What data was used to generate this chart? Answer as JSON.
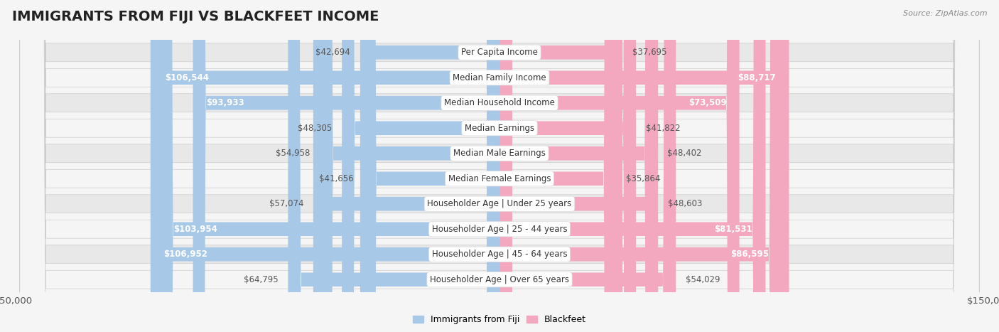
{
  "title": "IMMIGRANTS FROM FIJI VS BLACKFEET INCOME",
  "source": "Source: ZipAtlas.com",
  "categories": [
    "Per Capita Income",
    "Median Family Income",
    "Median Household Income",
    "Median Earnings",
    "Median Male Earnings",
    "Median Female Earnings",
    "Householder Age | Under 25 years",
    "Householder Age | 25 - 44 years",
    "Householder Age | 45 - 64 years",
    "Householder Age | Over 65 years"
  ],
  "fiji_values": [
    42694,
    106544,
    93933,
    48305,
    54958,
    41656,
    57074,
    103954,
    106952,
    64795
  ],
  "blackfeet_values": [
    37695,
    88717,
    73509,
    41822,
    48402,
    35864,
    48603,
    81531,
    86595,
    54029
  ],
  "fiji_color": "#a8c8e8",
  "blackfeet_color": "#f4a8c0",
  "fiji_dark_color": "#5b8fc9",
  "blackfeet_dark_color": "#f06a8a",
  "fiji_label_color": "#ffffff",
  "blackfeet_label_color": "#ffffff",
  "max_value": 150000,
  "background_color": "#f5f5f5",
  "row_bg_even": "#e8e8e8",
  "row_bg_odd": "#f5f5f5",
  "fiji_label": "Immigrants from Fiji",
  "blackfeet_label": "Blackfeet",
  "title_fontsize": 14,
  "axis_label_fontsize": 9.5,
  "bar_label_fontsize": 8.5,
  "category_fontsize": 8.5
}
